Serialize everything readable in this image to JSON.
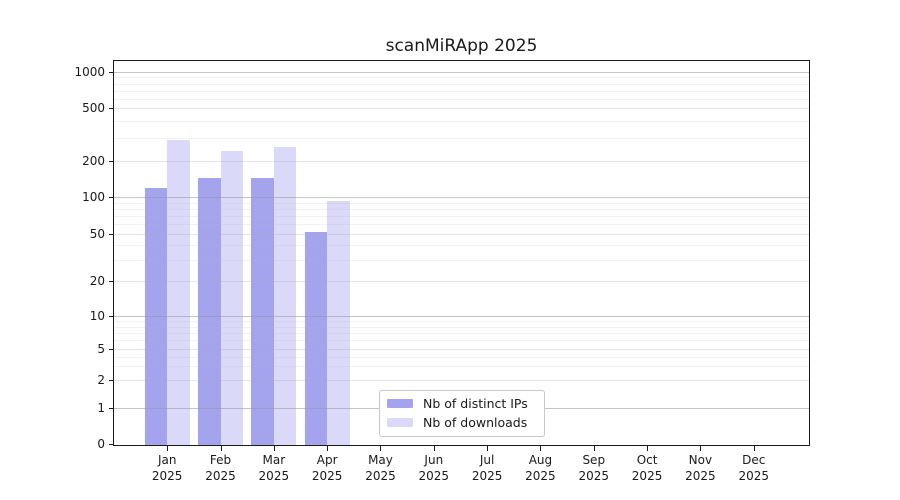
{
  "chart_data": {
    "type": "bar",
    "title": "scanMiRApp 2025",
    "categories": [
      "Jan",
      "Feb",
      "Mar",
      "Apr",
      "May",
      "Jun",
      "Jul",
      "Aug",
      "Sep",
      "Oct",
      "Nov",
      "Dec"
    ],
    "category_year": "2025",
    "series": [
      {
        "name": "Nb of distinct IPs",
        "color": "#a4a4ee",
        "values": [
          118,
          145,
          144,
          52,
          0,
          0,
          0,
          0,
          0,
          0,
          0,
          0
        ]
      },
      {
        "name": "Nb of downloads",
        "color": "#dadaf8",
        "values": [
          290,
          238,
          255,
          93,
          0,
          0,
          0,
          0,
          0,
          0,
          0,
          0
        ]
      }
    ],
    "yscale": "symlog",
    "yticks": [
      0,
      1,
      2,
      5,
      10,
      20,
      50,
      100,
      200,
      500,
      1000
    ],
    "ylim": [
      0,
      1300
    ],
    "grid": true,
    "legend": {
      "position": "lower center",
      "labels": [
        "Nb of distinct IPs",
        "Nb of downloads"
      ]
    }
  },
  "colors": {
    "bar_distinct_ips": "#a4a4ee",
    "bar_downloads": "#dadaf8",
    "grid_decade": "rgba(150,150,150,0.55)",
    "grid_labeled": "rgba(170,170,170,0.30)",
    "grid_minor": "rgba(185,185,185,0.18)",
    "spine": "#1a1a1a"
  }
}
